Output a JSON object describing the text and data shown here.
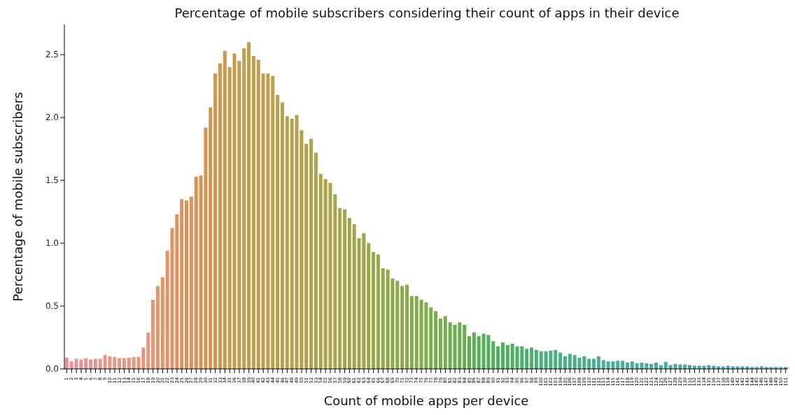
{
  "chart_data": {
    "type": "bar",
    "title": "Percentage of mobile subscribers considering their count of apps in their device",
    "xlabel": "Count of mobile apps per device",
    "ylabel": "Percentage of mobile subscribers",
    "categories": [
      "1",
      "2",
      "3",
      "4",
      "5",
      "6",
      "7",
      "8",
      "9",
      "10",
      "11",
      "12",
      "13",
      "14",
      "15",
      "16",
      "17",
      "18",
      "19",
      "20",
      "21",
      "22",
      "23",
      "24",
      "25",
      "26",
      "27",
      "28",
      "29",
      "30",
      "31",
      "32",
      "33",
      "34",
      "35",
      "36",
      "37",
      "38",
      "39",
      "40",
      "41",
      "42",
      "43",
      "44",
      "45",
      "46",
      "47",
      "48",
      "49",
      "50",
      "51",
      "52",
      "53",
      "54",
      "55",
      "56",
      "57",
      "58",
      "59",
      "60",
      "61",
      "62",
      "63",
      "64",
      "65",
      "66",
      "67",
      "68",
      "69",
      "70",
      "71",
      "72",
      "73",
      "74",
      "75",
      "76",
      "77",
      "78",
      "79",
      "80",
      "81",
      "82",
      "83",
      "84",
      "85",
      "86",
      "87",
      "88",
      "89",
      "90",
      "91",
      "92",
      "93",
      "94",
      "95",
      "96",
      "97",
      "98",
      "99",
      "100",
      "101",
      "102",
      "103",
      "104",
      "105",
      "106",
      "107",
      "108",
      "109",
      "110",
      "111",
      "112",
      "113",
      "114",
      "115",
      "116",
      "117",
      "118",
      "119",
      "120",
      "121",
      "122",
      "123",
      "124",
      "125",
      "126",
      "127",
      "128",
      "129",
      "130",
      "131",
      "132",
      "133",
      "134",
      "135",
      "136",
      "137",
      "138",
      "139",
      "140",
      "141",
      "142",
      "143",
      "144",
      "145",
      "146",
      "147",
      "148",
      "149",
      "150",
      "151"
    ],
    "values": [
      0.09,
      0.06,
      0.08,
      0.075,
      0.085,
      0.075,
      0.08,
      0.08,
      0.11,
      0.1,
      0.095,
      0.085,
      0.085,
      0.09,
      0.095,
      0.095,
      0.17,
      0.29,
      0.55,
      0.66,
      0.73,
      0.94,
      1.12,
      1.23,
      1.35,
      1.34,
      1.37,
      1.53,
      1.54,
      1.92,
      2.08,
      2.35,
      2.43,
      2.53,
      2.4,
      2.51,
      2.45,
      2.55,
      2.6,
      2.49,
      2.46,
      2.35,
      2.35,
      2.33,
      2.18,
      2.12,
      2.01,
      1.99,
      2.02,
      1.9,
      1.79,
      1.83,
      1.72,
      1.55,
      1.51,
      1.48,
      1.39,
      1.28,
      1.27,
      1.2,
      1.15,
      1.04,
      1.08,
      1.0,
      0.93,
      0.91,
      0.8,
      0.79,
      0.72,
      0.7,
      0.66,
      0.67,
      0.58,
      0.58,
      0.55,
      0.53,
      0.49,
      0.46,
      0.4,
      0.42,
      0.37,
      0.35,
      0.37,
      0.35,
      0.26,
      0.29,
      0.26,
      0.28,
      0.27,
      0.22,
      0.18,
      0.21,
      0.19,
      0.2,
      0.18,
      0.18,
      0.16,
      0.17,
      0.15,
      0.14,
      0.14,
      0.145,
      0.15,
      0.13,
      0.1,
      0.12,
      0.11,
      0.09,
      0.1,
      0.08,
      0.08,
      0.1,
      0.07,
      0.06,
      0.06,
      0.065,
      0.065,
      0.05,
      0.06,
      0.045,
      0.05,
      0.045,
      0.04,
      0.05,
      0.03,
      0.055,
      0.03,
      0.04,
      0.035,
      0.035,
      0.03,
      0.025,
      0.025,
      0.025,
      0.03,
      0.025,
      0.02,
      0.02,
      0.025,
      0.02,
      0.02,
      0.02,
      0.02,
      0.015,
      0.015,
      0.02,
      0.015,
      0.015,
      0.015,
      0.015,
      0.015
    ],
    "colors": [
      "#e8929c",
      "#e8939a",
      "#e89398",
      "#e89496",
      "#e89494",
      "#e89592",
      "#e79590",
      "#e7968e",
      "#e7968c",
      "#e7978a",
      "#e79788",
      "#e69786",
      "#e69784",
      "#e69782",
      "#e69780",
      "#e6977e",
      "#e5967a",
      "#e49676",
      "#e49572",
      "#e3956e",
      "#e2946a",
      "#e19466",
      "#e09462",
      "#df935e",
      "#dd935b",
      "#db9358",
      "#d99356",
      "#d79354",
      "#d59453",
      "#d39452",
      "#d19550",
      "#cf964f",
      "#cd974f",
      "#cb984e",
      "#c9994e",
      "#c89a4d",
      "#c69b4d",
      "#c59b4d",
      "#c49c4c",
      "#c39c4c",
      "#c29d4c",
      "#c09e4b",
      "#be9f4b",
      "#bd9f4b",
      "#bba04b",
      "#baa04b",
      "#b8a14a",
      "#b7a14a",
      "#b5a14a",
      "#b4a24a",
      "#b3a24a",
      "#b1a34a",
      "#afa34a",
      "#ada44a",
      "#aba44a",
      "#a9a54a",
      "#a7a54a",
      "#a5a54a",
      "#a3a64a",
      "#a1a64a",
      "#a0a64a",
      "#9ea74a",
      "#9ca74a",
      "#9aa84a",
      "#98a84a",
      "#96a94a",
      "#94a94a",
      "#92a94a",
      "#90aa4a",
      "#8eaa4a",
      "#8caa4a",
      "#89ab4a",
      "#86ab4a",
      "#84ac4a",
      "#81ac4a",
      "#7ead4a",
      "#7bad4a",
      "#78ad4a",
      "#75ae4a",
      "#72ae4a",
      "#6fae4a",
      "#6baf4b",
      "#67af4c",
      "#63af4d",
      "#5faf4f",
      "#5bb050",
      "#57b052",
      "#54b054",
      "#51b056",
      "#50b058",
      "#4fb05b",
      "#4eb05e",
      "#4db061",
      "#4db064",
      "#4cb067",
      "#4cb06a",
      "#4bb06d",
      "#4bb070",
      "#4ab073",
      "#4ab077",
      "#4ab07c",
      "#4ab07e",
      "#4ab080",
      "#4ab082",
      "#4ab084",
      "#4aaf86",
      "#4aaf88",
      "#4aaf8a",
      "#4aaf8c",
      "#4aaf8d",
      "#4aaf8e",
      "#4aaf90",
      "#4aae91",
      "#4aae93",
      "#4aae94",
      "#4aae96",
      "#4aae97",
      "#4aad99",
      "#4aad9a",
      "#4aad9b",
      "#4aad9c",
      "#4aad9d",
      "#4aad9e",
      "#4aac9f",
      "#4aaca0",
      "#4aaca1",
      "#4aaca2",
      "#4aaca3",
      "#4aaba4",
      "#4aaba5",
      "#4aaba5",
      "#4aaba6",
      "#4aaba7",
      "#4aaaa7",
      "#4aaaa8",
      "#4aaaa9",
      "#4aaaa9",
      "#4aaaaa",
      "#4aa9aa",
      "#4aa9ab",
      "#4aa9ab",
      "#4aa9ac",
      "#4aa9ad",
      "#4aa8ad",
      "#4aa8ae",
      "#4aa8ae",
      "#4aa8af",
      "#4ba7af",
      "#4ba7b0",
      "#4ba7b0",
      "#4ba7b0"
    ],
    "ylim": [
      0,
      2.74
    ],
    "yticks": [
      {
        "value": 0,
        "label": "0.0"
      },
      {
        "value": 0.5,
        "label": "0.5"
      },
      {
        "value": 1,
        "label": "1.0"
      },
      {
        "value": 1.5,
        "label": "1.5"
      },
      {
        "value": 2,
        "label": "2.0"
      },
      {
        "value": 2.5,
        "label": "2.5"
      }
    ]
  }
}
